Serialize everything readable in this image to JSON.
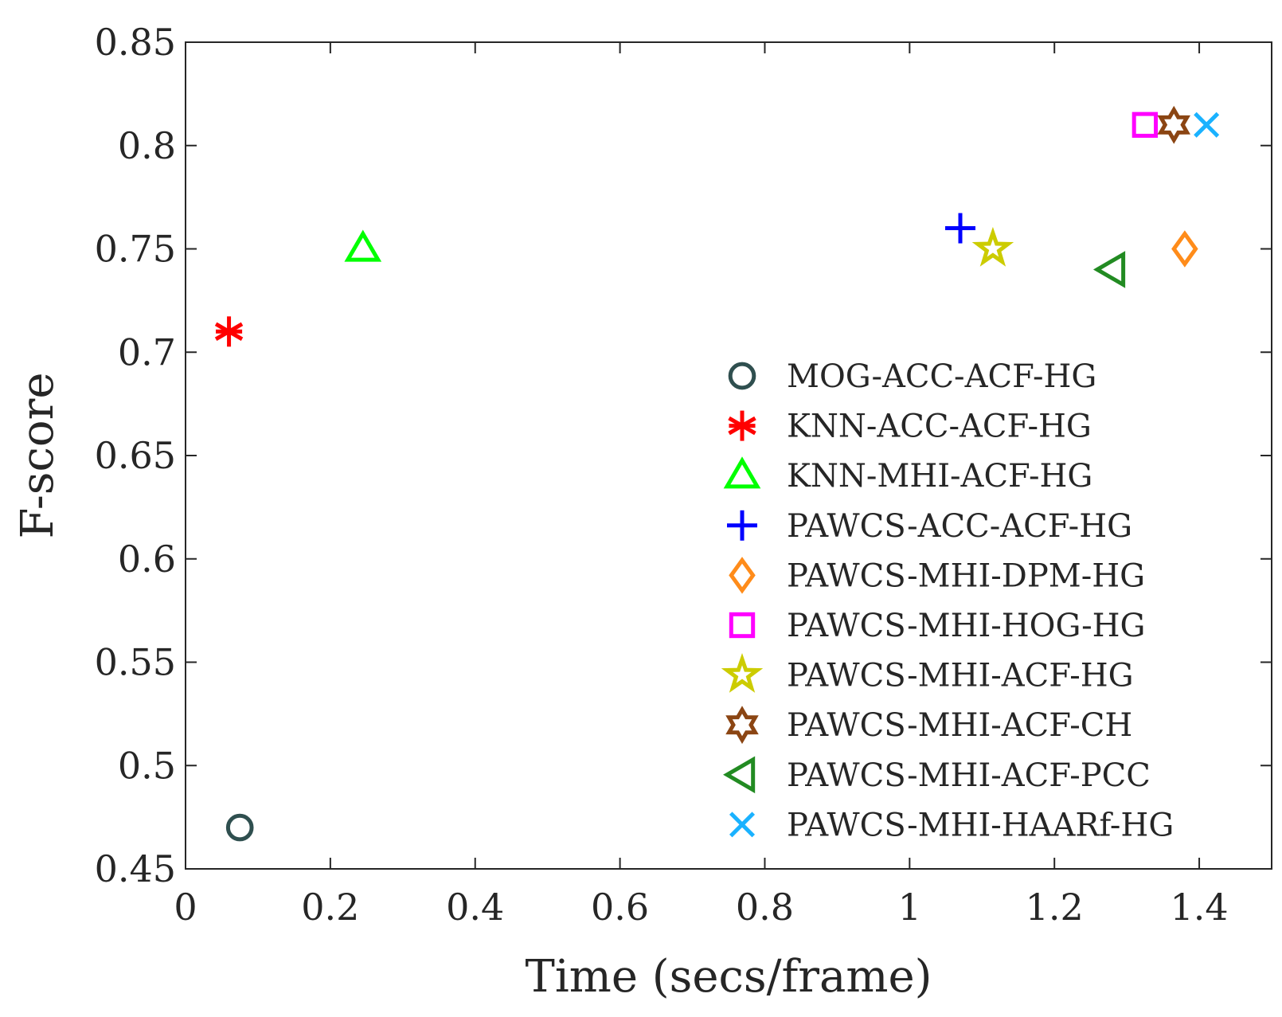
{
  "chart_data": {
    "type": "scatter",
    "title": "",
    "xlabel": "Time (secs/frame)",
    "ylabel": "F-score",
    "xlim": [
      0,
      1.5
    ],
    "ylim": [
      0.45,
      0.85
    ],
    "xticks": [
      0,
      0.2,
      0.4,
      0.6,
      0.8,
      1,
      1.2,
      1.4
    ],
    "xtick_labels": [
      "0",
      "0.2",
      "0.4",
      "0.6",
      "0.8",
      "1",
      "1.2",
      "1.4"
    ],
    "yticks": [
      0.45,
      0.5,
      0.55,
      0.6,
      0.65,
      0.7,
      0.75,
      0.8,
      0.85
    ],
    "ytick_labels": [
      "0.45",
      "0.5",
      "0.55",
      "0.6",
      "0.65",
      "0.7",
      "0.75",
      "0.8",
      "0.85"
    ],
    "grid": false,
    "legend_position": "bottom-right",
    "series": [
      {
        "name": "MOG-ACC-ACF-HG",
        "marker": "circle",
        "color": "#2f4f4f",
        "x": 0.075,
        "y": 0.47
      },
      {
        "name": "KNN-ACC-ACF-HG",
        "marker": "asterisk",
        "color": "#ff0000",
        "x": 0.06,
        "y": 0.71
      },
      {
        "name": "KNN-MHI-ACF-HG",
        "marker": "triangle-up",
        "color": "#00ff00",
        "x": 0.245,
        "y": 0.75
      },
      {
        "name": "PAWCS-ACC-ACF-HG",
        "marker": "plus",
        "color": "#0000ff",
        "x": 1.07,
        "y": 0.76
      },
      {
        "name": "PAWCS-MHI-DPM-HG",
        "marker": "diamond",
        "color": "#ff8c1a",
        "x": 1.38,
        "y": 0.75
      },
      {
        "name": "PAWCS-MHI-HOG-HG",
        "marker": "square",
        "color": "#ff00ff",
        "x": 1.325,
        "y": 0.81
      },
      {
        "name": "PAWCS-MHI-ACF-HG",
        "marker": "pentagram",
        "color": "#cccc00",
        "x": 1.115,
        "y": 0.75
      },
      {
        "name": "PAWCS-MHI-ACF-CH",
        "marker": "hexagram",
        "color": "#8b4513",
        "x": 1.365,
        "y": 0.81
      },
      {
        "name": "PAWCS-MHI-ACF-PCC",
        "marker": "triangle-left",
        "color": "#228b22",
        "x": 1.28,
        "y": 0.74
      },
      {
        "name": "PAWCS-MHI-HAARf-HG",
        "marker": "x",
        "color": "#1ab2ff",
        "x": 1.41,
        "y": 0.81
      }
    ]
  }
}
